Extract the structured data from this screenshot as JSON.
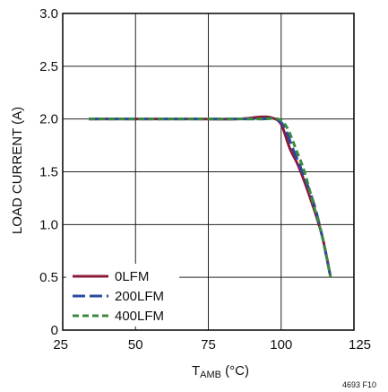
{
  "chart_data": {
    "type": "line",
    "xlabel_main": "T",
    "xlabel_sub": "AMB",
    "xlabel_unit": " (°C)",
    "ylabel": "LOAD CURRENT (A)",
    "xlim": [
      25,
      125
    ],
    "ylim": [
      0,
      3.0
    ],
    "x_ticks": [
      "25",
      "50",
      "75",
      "100",
      "125"
    ],
    "y_ticks": [
      "0",
      "0.5",
      "1.0",
      "1.5",
      "2.0",
      "2.5",
      "3.0"
    ],
    "grid": true,
    "legend_position": "bottom-left",
    "series": [
      {
        "name": "0LFM",
        "color": "#8b1a3a",
        "dash": "solid",
        "x": [
          34,
          50,
          70,
          85,
          93,
          97,
          100,
          103,
          106,
          110,
          114,
          117
        ],
        "y": [
          2.0,
          2.0,
          2.0,
          2.0,
          2.02,
          2.01,
          1.95,
          1.72,
          1.55,
          1.25,
          0.9,
          0.5
        ]
      },
      {
        "name": "200LFM",
        "color": "#2b4aa0",
        "dash": "long-dash",
        "x": [
          34,
          50,
          70,
          85,
          93,
          98,
          101,
          104,
          107,
          111,
          114,
          117
        ],
        "y": [
          2.0,
          2.0,
          2.0,
          2.0,
          2.0,
          2.0,
          1.93,
          1.72,
          1.52,
          1.22,
          0.9,
          0.5
        ]
      },
      {
        "name": "400LFM",
        "color": "#3b8a3e",
        "dash": "short-dash",
        "x": [
          34,
          50,
          70,
          85,
          93,
          99,
          102,
          105,
          108,
          111,
          114,
          117
        ],
        "y": [
          2.0,
          2.0,
          2.0,
          2.0,
          2.0,
          2.0,
          1.92,
          1.72,
          1.5,
          1.2,
          0.9,
          0.5
        ]
      }
    ]
  },
  "figure_id": "4693 F10"
}
